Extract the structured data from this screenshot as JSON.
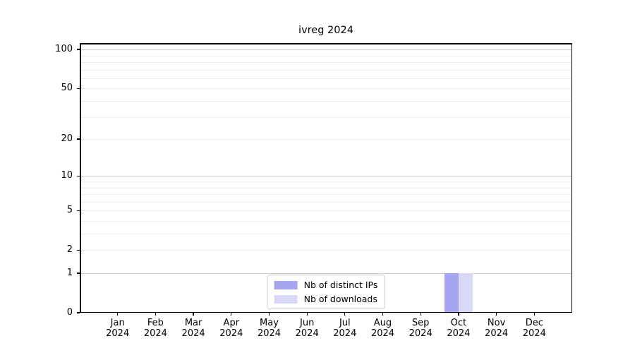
{
  "chart_data": {
    "type": "bar",
    "title": "ivreg 2024",
    "year_label": "2024",
    "months": [
      "Jan",
      "Feb",
      "Mar",
      "Apr",
      "May",
      "Jun",
      "Jul",
      "Aug",
      "Sep",
      "Oct",
      "Nov",
      "Dec"
    ],
    "series": [
      {
        "name": "Nb of distinct IPs",
        "color": "#a5a5f0",
        "values": [
          0,
          0,
          0,
          0,
          0,
          0,
          0,
          0,
          0,
          1,
          0,
          0
        ]
      },
      {
        "name": "Nb of downloads",
        "color": "#d9d9f7",
        "values": [
          0,
          0,
          0,
          0,
          0,
          0,
          0,
          0,
          0,
          1,
          0,
          0
        ]
      }
    ],
    "yscale": "log10(1+y)",
    "ylim": [
      0,
      112
    ],
    "yticks": [
      0,
      1,
      2,
      5,
      10,
      20,
      50,
      100
    ],
    "major_gridlines": [
      1,
      10,
      100
    ],
    "minor_gridlines": [
      2,
      3,
      4,
      5,
      6,
      7,
      8,
      9,
      20,
      30,
      40,
      50,
      60,
      70,
      80,
      90
    ],
    "grid": "horizontal",
    "legend_position": "lower center",
    "colors": {
      "axis": "#000000",
      "text": "#000000",
      "major_grid": "#cccccc",
      "minor_grid": "#ececec",
      "background": "#ffffff"
    }
  }
}
